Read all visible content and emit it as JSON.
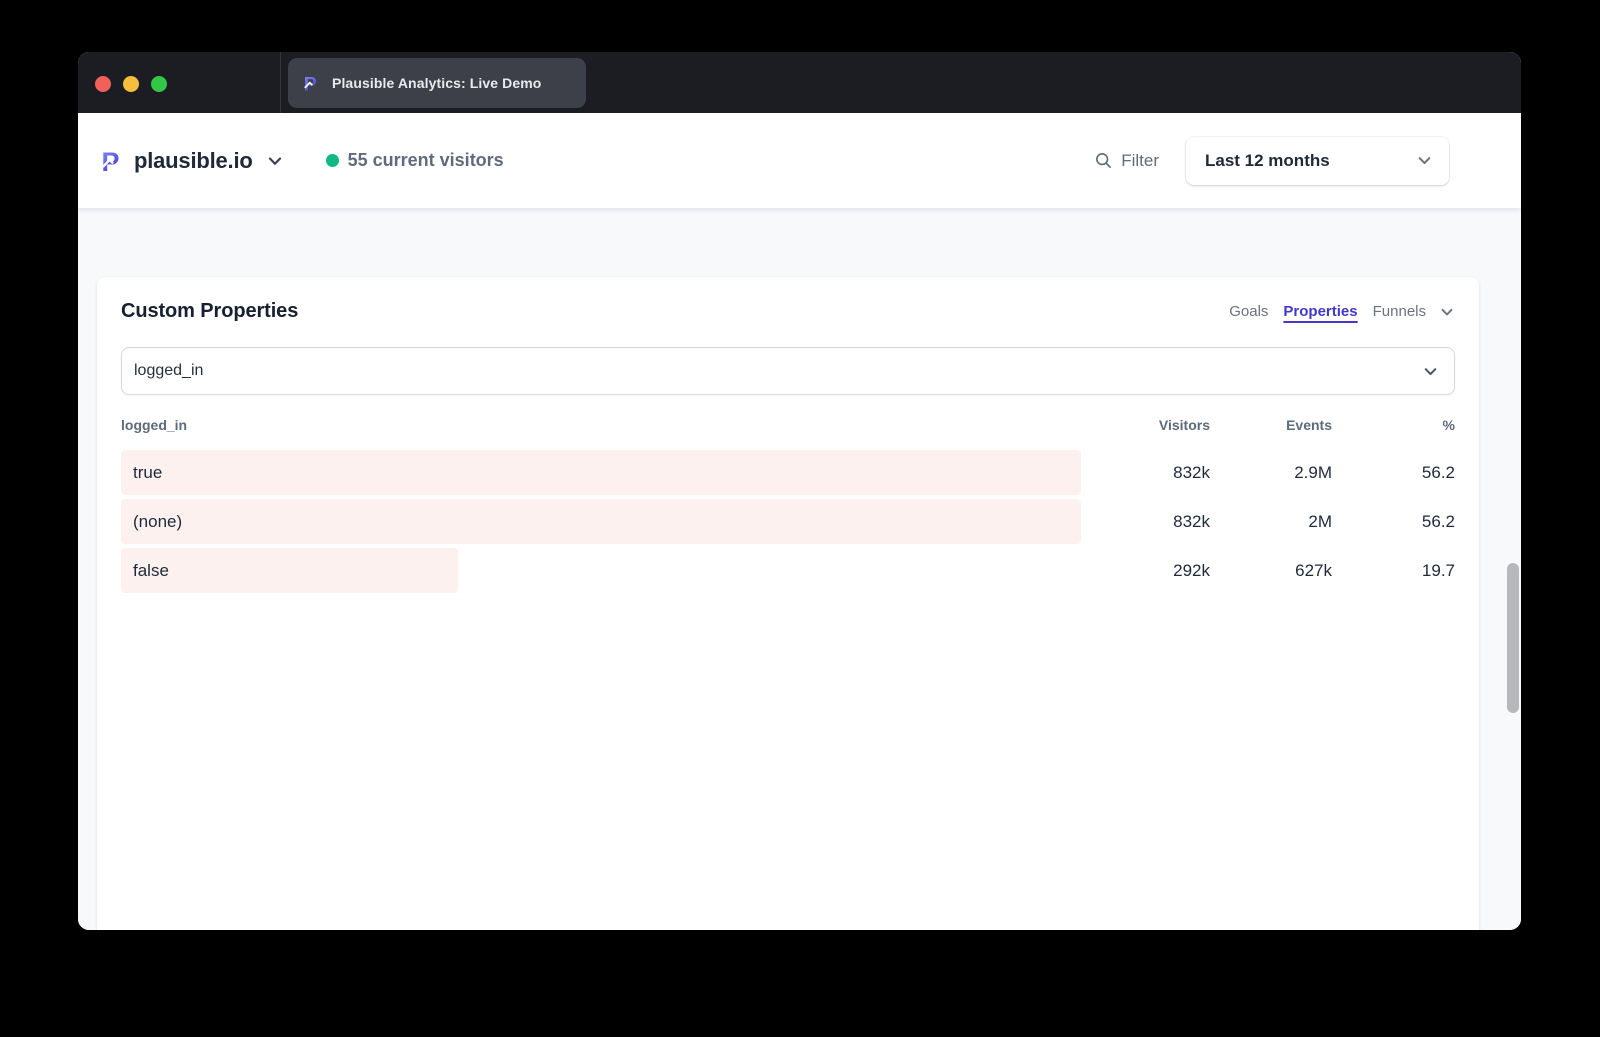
{
  "window": {
    "tab_title": "Plausible Analytics: Live Demo"
  },
  "header": {
    "site_name": "plausible.io",
    "live_visitors": "55 current visitors",
    "filter_label": "Filter",
    "date_range_label": "Last 12 months"
  },
  "panel": {
    "title": "Custom Properties",
    "nav_tabs": [
      {
        "label": "Goals",
        "active": false
      },
      {
        "label": "Properties",
        "active": true
      },
      {
        "label": "Funnels",
        "active": false
      }
    ],
    "property_filter_value": "logged_in",
    "breakdown": {
      "type": "table",
      "key_column": "logged_in",
      "metric_columns": [
        "Visitors",
        "Events",
        "%"
      ],
      "rows": [
        {
          "label": "true",
          "visitors": "832k",
          "events": "2.9M",
          "percent": "56.2",
          "bar_pct": 100
        },
        {
          "label": "(none)",
          "visitors": "832k",
          "events": "2M",
          "percent": "56.2",
          "bar_pct": 100
        },
        {
          "label": "false",
          "visitors": "292k",
          "events": "627k",
          "percent": "19.7",
          "bar_pct": 35.1
        }
      ]
    }
  },
  "colors": {
    "accent_indigo": "#4338ca",
    "bar_fill": "#fdf1f0",
    "live_dot_green": "#10b981",
    "titlebar_bg": "#1b1d23",
    "tab_bg": "#3d4049",
    "logo_gradient_top": "#8b93f8",
    "logo_gradient_bottom": "#4338ca"
  }
}
